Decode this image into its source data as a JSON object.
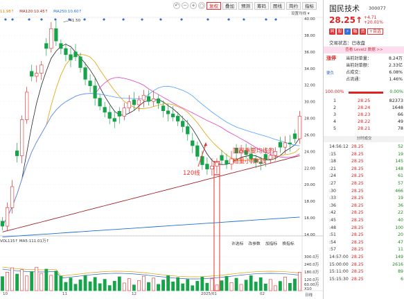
{
  "toolbar": {
    "buttons": [
      "复权",
      "叠加",
      "预测",
      "筹码",
      "图线",
      "简约",
      "指标"
    ],
    "active": "复权"
  },
  "ma_legend": {
    "items": [
      {
        "label": "11.98↑",
        "color": "#e07b00"
      },
      {
        "label": "MA120:10.45↑",
        "color": "#a02020"
      },
      {
        "label": "MA250:10.60↑",
        "color": "#1d6fd0"
      }
    ]
  },
  "settings_label": "设置均线",
  "price_axis": {
    "min": 14.0,
    "max": 40.0,
    "ticks": [
      "40.00",
      "38.00",
      "36.00",
      "34.00",
      "32.00",
      "30.00",
      "28.00",
      "26.00",
      "24.00",
      "22.00",
      "20.00",
      "18.00",
      "16.00",
      "14.00"
    ]
  },
  "high_marker": "41.50",
  "volume_axis": {
    "ticks": [
      "300.0万",
      "240.0万",
      "180.0万",
      "120.0万",
      "60.00万",
      "X10"
    ]
  },
  "x_axis_labels": [
    "10",
    "11",
    "12",
    "2025/01",
    "02"
  ],
  "x_axis_extra": "日线",
  "sub_panel": {
    "legend": "VOL115↑  MA5:111.01万↑",
    "menu": [
      "许选标",
      "改参数",
      "加指标",
      "换指标"
    ]
  },
  "annotations": {
    "ma120_label": "120线",
    "callout_line1": "回踩重要均线的",
    "callout_line2": "缩量小阳K线"
  },
  "panel": {
    "name": "国民技术",
    "code": "300077",
    "price": "28.25",
    "arrow": "↑",
    "change": "+4.71",
    "change_pct": "+20.01%",
    "icon_labels": [
      "同",
      "股",
      "⚡",
      "融",
      "资"
    ],
    "add_watch": "+自选",
    "trade_status": "交易状态：已收盘",
    "level2": "查看 Level2 数据 >>",
    "limit_tag": "涨停",
    "limit_sub": "要负",
    "info": [
      {
        "k": "当前封单量：",
        "v": "8.24万"
      },
      {
        "k": "当前封单额：",
        "v": "2.33亿"
      },
      {
        "k": "占成交：",
        "v": "6.08%"
      },
      {
        "k": "占流通：",
        "v": "1.46%"
      }
    ],
    "ratio_left": "100.00%",
    "ratio_right": "0.00%",
    "book_levels": [
      {
        "level": "1",
        "price": "28.25",
        "vol": "82373"
      },
      {
        "level": "2",
        "price": "28.24",
        "vol": "1648"
      },
      {
        "level": "3",
        "price": "28.23",
        "vol": "66"
      },
      {
        "level": "4",
        "price": "28.22",
        "vol": "49"
      },
      {
        "level": "5",
        "price": "28.21",
        "vol": "78"
      }
    ],
    "ticks_title": "分时成交",
    "ticks": [
      {
        "t": "14:56:12",
        "p": "28.25",
        "v": "52"
      },
      {
        "t": ":15",
        "p": "28.25",
        "v": "19"
      },
      {
        "t": ":18",
        "p": "28.25",
        "v": "145"
      },
      {
        "t": ":21",
        "p": "28.25",
        "v": "148"
      },
      {
        "t": ":24",
        "p": "28.25",
        "v": "61"
      },
      {
        "t": ":27",
        "p": "28.25",
        "v": "57"
      },
      {
        "t": ":30",
        "p": "28.25",
        "v": "466"
      },
      {
        "t": ":33",
        "p": "28.25",
        "v": "19"
      },
      {
        "t": ":36",
        "p": "28.25",
        "v": "36"
      },
      {
        "t": ":42",
        "p": "28.25",
        "v": "22"
      },
      {
        "t": ":45",
        "p": "28.25",
        "v": "40"
      },
      {
        "t": ":48",
        "p": "28.25",
        "v": "100"
      },
      {
        "t": ":51",
        "p": "28.25",
        "v": "20"
      },
      {
        "t": ":54",
        "p": "28.25",
        "v": "47"
      },
      {
        "t": ":57",
        "p": "28.25",
        "v": "11"
      },
      {
        "t": "14:57:00",
        "p": "28.25",
        "v": "149"
      },
      {
        "t": "15:00:00",
        "p": "28.25",
        "v": "2616"
      },
      {
        "t": "15:11:00",
        "p": "28.25",
        "v": "89"
      },
      {
        "t": "15:15:30",
        "p": "28.25",
        "v": "6"
      }
    ]
  },
  "colors": {
    "up": "#e52b2b",
    "down": "#16a34a",
    "ma_short": "#222222",
    "ma_pink": "#e040c0",
    "ma120": "#a02020",
    "ma250": "#1d6fd0",
    "callout": "#e33333"
  }
}
